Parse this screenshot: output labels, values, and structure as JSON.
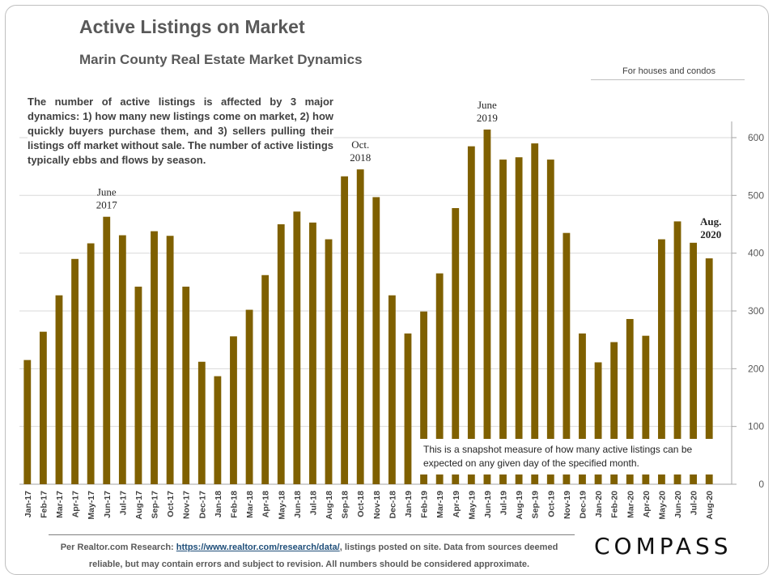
{
  "header": {
    "title": "Active Listings on Market",
    "subtitle": "Marin County Real Estate Market Dynamics",
    "note": "For houses and condos"
  },
  "description": "The number of active listings is affected by 3 major dynamics: 1) how many new listings come on market, 2) how quickly buyers purchase them, and 3) sellers pulling their listings off market without sale. The number of active listings typically ebbs and flows by season.",
  "callout": "This is a snapshot measure of how many active listings can be expected on any given day of the specified month.",
  "footer": {
    "prefix": "Per Realtor.com Research:",
    "link": "https://www.realtor.com/research/data/",
    "suffix": ", listings posted on site. Data from sources deemed reliable, but may contain errors and subject to revision. All numbers should be considered approximate."
  },
  "logo": "COMPASS",
  "colors": {
    "bar": "#7f6000",
    "grid": "#d9d9d9"
  },
  "chart_data": {
    "type": "bar",
    "title": "Active Listings on Market",
    "subtitle": "Marin County Real Estate Market Dynamics",
    "xlabel": "",
    "ylabel": "",
    "ylim": [
      0,
      620
    ],
    "yticks": [
      0,
      100,
      200,
      300,
      400,
      500,
      600
    ],
    "grid": true,
    "y_axis_side": "right",
    "categories": [
      "Jan-17",
      "Feb-17",
      "Mar-17",
      "Apr-17",
      "May-17",
      "Jun-17",
      "Jul-17",
      "Aug-17",
      "Sep-17",
      "Oct-17",
      "Nov-17",
      "Dec-17",
      "Jan-18",
      "Feb-18",
      "Mar-18",
      "Apr-18",
      "May-18",
      "Jun-18",
      "Jul-18",
      "Aug-18",
      "Sep-18",
      "Oct-18",
      "Nov-18",
      "Dec-18",
      "Jan-19",
      "Feb-19",
      "Mar-19",
      "Apr-19",
      "May-19",
      "Jun-19",
      "Jul-19",
      "Aug-19",
      "Sep-19",
      "Oct-19",
      "Nov-19",
      "Dec-19",
      "Jan-20",
      "Feb-20",
      "Mar-20",
      "Apr-20",
      "May-20",
      "Jun-20",
      "Jul-20",
      "Aug-20"
    ],
    "values": [
      215,
      264,
      327,
      390,
      417,
      463,
      431,
      342,
      438,
      430,
      342,
      212,
      187,
      256,
      302,
      362,
      450,
      472,
      453,
      424,
      533,
      545,
      497,
      327,
      261,
      299,
      365,
      478,
      585,
      614,
      562,
      566,
      590,
      562,
      435,
      261,
      211,
      246,
      286,
      257,
      424,
      455,
      418,
      391
    ],
    "annotations": [
      {
        "category": "Jun-17",
        "lines": [
          "June",
          "2017"
        ]
      },
      {
        "category": "Oct-18",
        "lines": [
          "Oct.",
          "2018"
        ]
      },
      {
        "category": "Jun-19",
        "lines": [
          "June",
          "2019"
        ]
      },
      {
        "category": "Aug-20",
        "lines": [
          "Aug.",
          "2020"
        ]
      }
    ]
  }
}
